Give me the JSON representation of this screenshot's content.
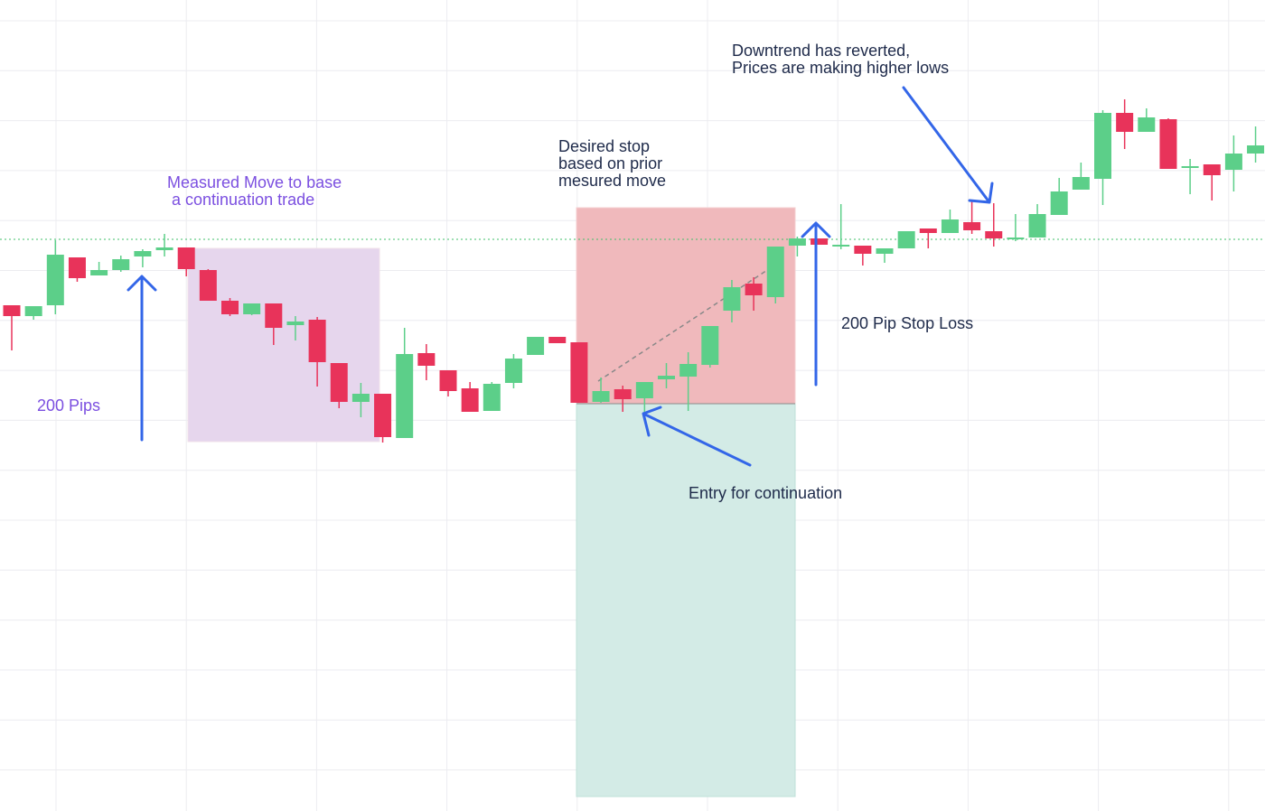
{
  "chart_data": {
    "type": "candlestick",
    "ylim": [
      0,
      898
    ],
    "up_color": "#5ccf89",
    "down_color": "#e8335a",
    "ohlc": [
      [
        560,
        560,
        510,
        548
      ],
      [
        548,
        559,
        544,
        559
      ],
      [
        560,
        632,
        550,
        616
      ],
      [
        613,
        613,
        586,
        590
      ],
      [
        593,
        608,
        593,
        599
      ],
      [
        599,
        615,
        597,
        611
      ],
      [
        614,
        622,
        602,
        620
      ],
      [
        621,
        639,
        614,
        624
      ],
      [
        624,
        624,
        592,
        600
      ],
      [
        599,
        600,
        565,
        565
      ],
      [
        565,
        568,
        548,
        550
      ],
      [
        550,
        562,
        549,
        562
      ],
      [
        562,
        562,
        516,
        535
      ],
      [
        538,
        548,
        521,
        542
      ],
      [
        544,
        547,
        470,
        497
      ],
      [
        496,
        496,
        446,
        453
      ],
      [
        453,
        474,
        436,
        462
      ],
      [
        462,
        462,
        408,
        414
      ],
      [
        413,
        535,
        413,
        506
      ],
      [
        507,
        517,
        477,
        493
      ],
      [
        488,
        488,
        459,
        465
      ],
      [
        468,
        475,
        442,
        442
      ],
      [
        443,
        475,
        443,
        473
      ],
      [
        474,
        506,
        468,
        501
      ],
      [
        505,
        525,
        505,
        525
      ],
      [
        525,
        525,
        518,
        518
      ],
      [
        519,
        519,
        452,
        452
      ],
      [
        453,
        480,
        452,
        465
      ],
      [
        467,
        471,
        442,
        456
      ],
      [
        457,
        475,
        433,
        475
      ],
      [
        478,
        496,
        468,
        482
      ],
      [
        481,
        508,
        443,
        495
      ],
      [
        494,
        537,
        491,
        537
      ],
      [
        554,
        588,
        541,
        580
      ],
      [
        584,
        591,
        554,
        571
      ],
      [
        569,
        625,
        562,
        625
      ],
      [
        626,
        636,
        614,
        634
      ],
      [
        634,
        634,
        627,
        627
      ],
      [
        625,
        672,
        622,
        627
      ],
      [
        626,
        626,
        604,
        617
      ],
      [
        617,
        623,
        607,
        623
      ],
      [
        623,
        642,
        623,
        642
      ],
      [
        645,
        645,
        623,
        640
      ],
      [
        640,
        666,
        640,
        655
      ],
      [
        652,
        675,
        639,
        643
      ],
      [
        642,
        673,
        625,
        634
      ],
      [
        633,
        661,
        631,
        635
      ],
      [
        635,
        672,
        635,
        661
      ],
      [
        660,
        701,
        660,
        686
      ],
      [
        688,
        718,
        688,
        702
      ],
      [
        700,
        776,
        671,
        773
      ],
      [
        773,
        788,
        733,
        752
      ],
      [
        752,
        778,
        752,
        768
      ],
      [
        766,
        767,
        711,
        711
      ],
      [
        712,
        722,
        683,
        714
      ],
      [
        716,
        716,
        676,
        704
      ],
      [
        710,
        748,
        686,
        728
      ],
      [
        728,
        758,
        718,
        737
      ]
    ],
    "annotations": {
      "measured_move": [
        "Measured Move to base",
        " a continuation trade"
      ],
      "pips": "200 Pips",
      "desired_stop": [
        "Desired stop",
        "based on prior",
        "mesured move"
      ],
      "downtrend": [
        "Downtrend has reverted,",
        "Prices are making higher lows"
      ],
      "stop_loss": "200 Pip Stop Loss",
      "entry": "Entry for continuation"
    }
  }
}
